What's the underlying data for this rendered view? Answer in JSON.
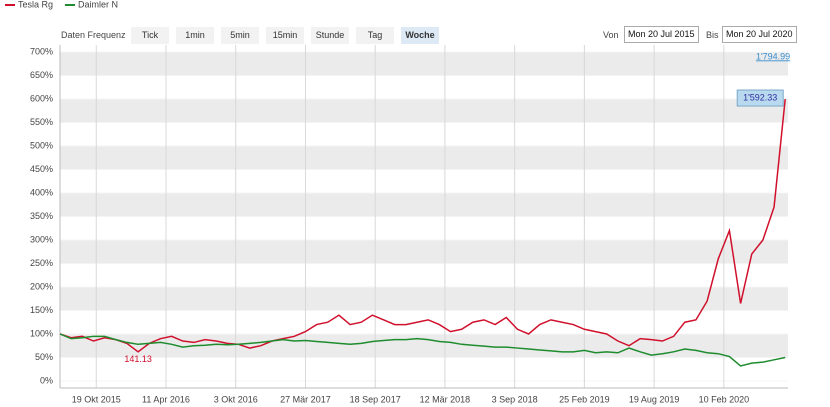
{
  "toolbar": {
    "label": "Daten Frequenz",
    "buttons": [
      "Tick",
      "1min",
      "5min",
      "15min",
      "Stunde",
      "Tag",
      "Woche"
    ],
    "selected_index": 6,
    "from_label": "Von",
    "from": "Mon 20 Jul 2015",
    "to_label": "Bis",
    "to": "Mon 20 Jul 2020"
  },
  "chart_data": {
    "type": "line",
    "x": [
      0,
      4,
      8,
      12,
      16,
      20,
      24,
      28,
      32,
      36,
      40,
      44,
      48,
      52,
      56,
      60,
      64,
      68,
      72,
      76,
      80,
      84,
      88,
      92,
      96,
      100,
      104,
      108,
      112,
      116,
      120,
      124,
      128,
      132,
      136,
      140,
      144,
      148,
      152,
      156,
      160,
      164,
      168,
      172,
      176,
      180,
      184,
      188,
      192,
      196,
      200,
      204,
      208,
      212,
      216,
      220,
      224,
      228,
      232,
      236,
      240,
      244,
      248,
      252,
      256,
      260
    ],
    "xlim": [
      0,
      261
    ],
    "xticks": [
      {
        "value": 13,
        "label": "19 Okt 2015"
      },
      {
        "value": 38,
        "label": "11 Apr 2016"
      },
      {
        "value": 63,
        "label": "3 Okt 2016"
      },
      {
        "value": 88,
        "label": "27 Mär 2017"
      },
      {
        "value": 113,
        "label": "18 Sep 2017"
      },
      {
        "value": 138,
        "label": "12 Mär 2018"
      },
      {
        "value": 163,
        "label": "3 Sep 2018"
      },
      {
        "value": 188,
        "label": "25 Feb 2019"
      },
      {
        "value": 213,
        "label": "19 Aug 2019"
      },
      {
        "value": 238,
        "label": "10 Feb 2020"
      }
    ],
    "ylim": [
      -15,
      715
    ],
    "yticks": [
      {
        "value": 0,
        "label": "0%"
      },
      {
        "value": 50,
        "label": "50%"
      },
      {
        "value": 100,
        "label": "100%"
      },
      {
        "value": 150,
        "label": "150%"
      },
      {
        "value": 200,
        "label": "200%"
      },
      {
        "value": 250,
        "label": "250%"
      },
      {
        "value": 300,
        "label": "300%"
      },
      {
        "value": 350,
        "label": "350%"
      },
      {
        "value": 400,
        "label": "400%"
      },
      {
        "value": 450,
        "label": "450%"
      },
      {
        "value": 500,
        "label": "500%"
      },
      {
        "value": 550,
        "label": "550%"
      },
      {
        "value": 600,
        "label": "600%"
      },
      {
        "value": 650,
        "label": "650%"
      },
      {
        "value": 700,
        "label": "700%"
      }
    ],
    "grid": true,
    "bands": true,
    "series": [
      {
        "name": "Tesla Rg",
        "color": "#d0102c",
        "values": [
          100,
          92,
          95,
          85,
          92,
          88,
          80,
          62,
          80,
          90,
          95,
          85,
          82,
          88,
          85,
          80,
          78,
          70,
          75,
          85,
          90,
          95,
          105,
          120,
          125,
          140,
          120,
          125,
          140,
          130,
          120,
          120,
          125,
          130,
          120,
          105,
          110,
          125,
          130,
          120,
          135,
          110,
          100,
          120,
          130,
          125,
          120,
          110,
          105,
          100,
          85,
          75,
          90,
          88,
          85,
          95,
          125,
          130,
          170,
          260,
          320,
          165,
          270,
          300,
          370,
          600
        ]
      },
      {
        "name": "Daimler N",
        "color": "#1e8c2e",
        "values": [
          100,
          90,
          92,
          95,
          95,
          88,
          82,
          78,
          80,
          82,
          78,
          72,
          75,
          76,
          78,
          77,
          78,
          80,
          82,
          85,
          88,
          85,
          86,
          84,
          82,
          80,
          78,
          80,
          84,
          86,
          88,
          88,
          90,
          88,
          84,
          82,
          78,
          76,
          74,
          72,
          72,
          70,
          68,
          66,
          64,
          62,
          62,
          65,
          60,
          62,
          60,
          70,
          62,
          55,
          58,
          62,
          68,
          65,
          60,
          58,
          52,
          32,
          38,
          40,
          45,
          50
        ]
      }
    ],
    "annotations": {
      "min": "141.13",
      "last": "1'592.33",
      "max": "1'794.99"
    }
  }
}
